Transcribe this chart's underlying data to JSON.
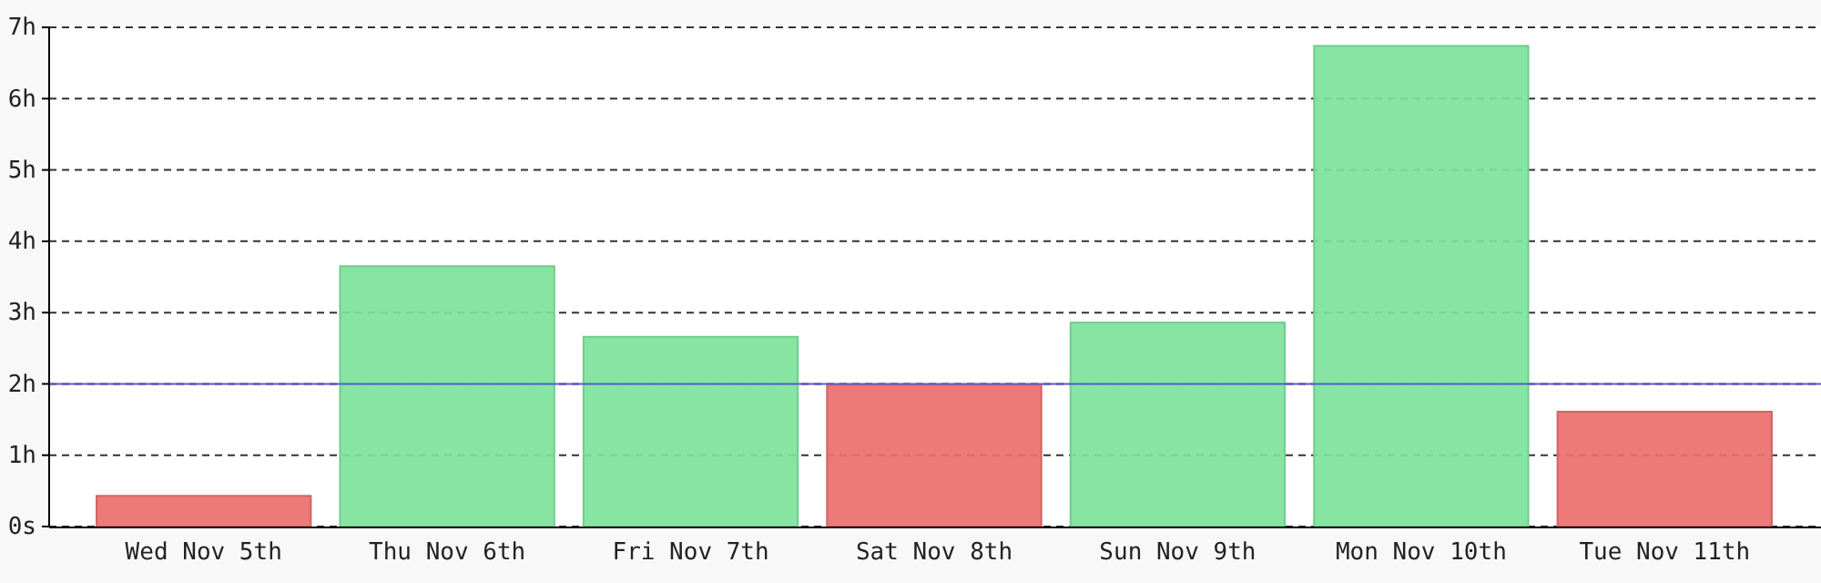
{
  "chart_data": {
    "type": "bar",
    "categories": [
      "Wed Nov 5th",
      "Thu Nov 6th",
      "Fri Nov 7th",
      "Sat Nov 8th",
      "Sun Nov 9th",
      "Mon Nov 10th",
      "Tue Nov 11th"
    ],
    "values": [
      0.43,
      3.65,
      2.66,
      1.99,
      2.86,
      6.74,
      1.61
    ],
    "colors": [
      "#eb6e6e",
      "#7de39c",
      "#7de39c",
      "#eb6e6e",
      "#7de39c",
      "#7de39c",
      "#eb6e6e"
    ],
    "ylim": [
      0,
      7
    ],
    "yticks": [
      {
        "value": 0,
        "label": "0s"
      },
      {
        "value": 1,
        "label": "1h"
      },
      {
        "value": 2,
        "label": "2h"
      },
      {
        "value": 3,
        "label": "3h"
      },
      {
        "value": 4,
        "label": "4h"
      },
      {
        "value": 5,
        "label": "5h"
      },
      {
        "value": 6,
        "label": "6h"
      },
      {
        "value": 7,
        "label": "7h"
      }
    ],
    "grid": "y",
    "ref_lines": [
      {
        "axis": "y",
        "value": 2,
        "color": "#5a5ad2"
      }
    ]
  }
}
